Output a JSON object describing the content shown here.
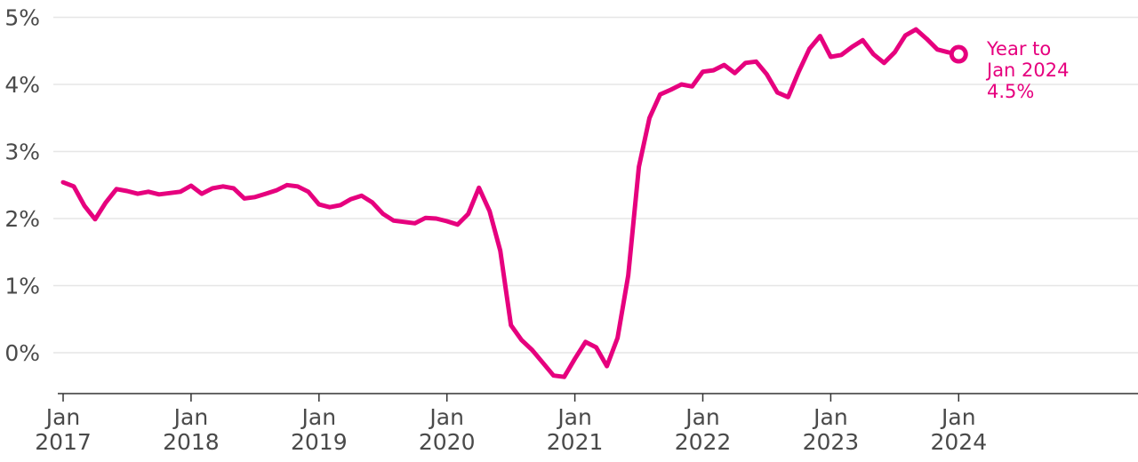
{
  "chart_data": {
    "type": "line",
    "title": "",
    "xlabel": "",
    "ylabel": "",
    "ylim": [
      -0.6,
      5
    ],
    "y_ticks": [
      {
        "value": 5,
        "label": "5%"
      },
      {
        "value": 4,
        "label": "4%"
      },
      {
        "value": 3,
        "label": "3%"
      },
      {
        "value": 2,
        "label": "2%"
      },
      {
        "value": 1,
        "label": "1%"
      },
      {
        "value": 0,
        "label": "0%"
      }
    ],
    "x_ticks": [
      {
        "year": 2017,
        "month": "Jan",
        "label_year": "2017"
      },
      {
        "year": 2018,
        "month": "Jan",
        "label_year": "2018"
      },
      {
        "year": 2019,
        "month": "Jan",
        "label_year": "2019"
      },
      {
        "year": 2020,
        "month": "Jan",
        "label_year": "2020"
      },
      {
        "year": 2021,
        "month": "Jan",
        "label_year": "2021"
      },
      {
        "year": 2022,
        "month": "Jan",
        "label_year": "2022"
      },
      {
        "year": 2023,
        "month": "Jan",
        "label_year": "2023"
      },
      {
        "year": 2024,
        "month": "Jan",
        "label_year": "2024"
      }
    ],
    "grid": true,
    "line_color": "#e6007e",
    "start": "2017-01",
    "frequency": "monthly",
    "values": [
      2.54,
      2.48,
      2.19,
      1.99,
      2.24,
      2.44,
      2.41,
      2.37,
      2.4,
      2.36,
      2.38,
      2.4,
      2.49,
      2.37,
      2.45,
      2.48,
      2.45,
      2.3,
      2.32,
      2.37,
      2.42,
      2.5,
      2.48,
      2.4,
      2.21,
      2.17,
      2.2,
      2.29,
      2.34,
      2.24,
      2.07,
      1.97,
      1.95,
      1.93,
      2.01,
      2.0,
      1.96,
      1.91,
      2.07,
      2.46,
      2.11,
      1.52,
      0.41,
      0.19,
      0.04,
      -0.15,
      -0.34,
      -0.36,
      -0.09,
      0.16,
      0.08,
      -0.2,
      0.22,
      1.15,
      2.77,
      3.5,
      3.85,
      3.92,
      4.0,
      3.97,
      4.19,
      4.21,
      4.29,
      4.17,
      4.32,
      4.34,
      4.15,
      3.88,
      3.81,
      4.19,
      4.53,
      4.72,
      4.41,
      4.44,
      4.56,
      4.66,
      4.45,
      4.32,
      4.48,
      4.73,
      4.82,
      4.68,
      4.52,
      4.48,
      4.45
    ],
    "annotation": {
      "lines": [
        "Year to",
        "Jan 2024",
        "4.5%"
      ],
      "marker": "open-circle"
    }
  }
}
